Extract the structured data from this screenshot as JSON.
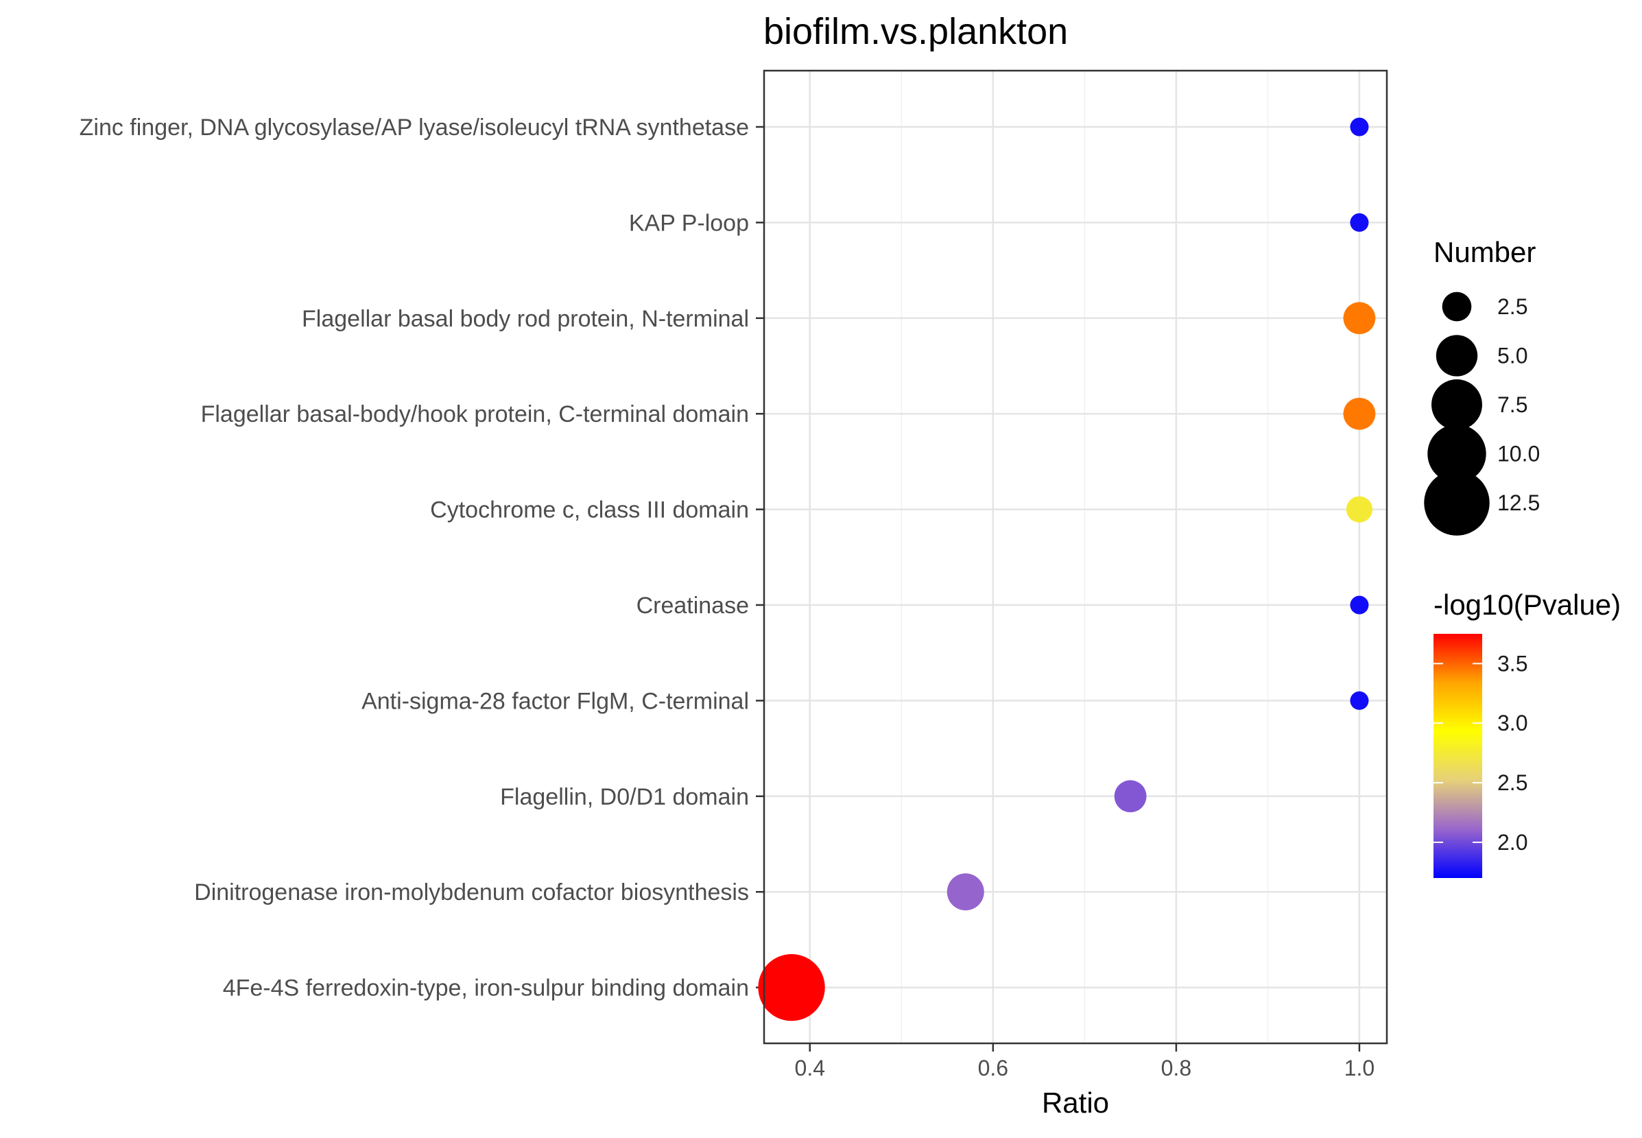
{
  "chart_data": {
    "type": "scatter",
    "title": "biofilm.vs.plankton",
    "xlabel": "Ratio",
    "ylabel": "",
    "xlim": [
      0.35,
      1.03
    ],
    "xticks": [
      0.4,
      0.6,
      0.8,
      1.0
    ],
    "xtick_labels": [
      "0.4",
      "0.6",
      "0.8",
      "1.0"
    ],
    "grid": true,
    "categories": [
      "Zinc finger, DNA glycosylase/AP lyase/isoleucyl tRNA synthetase",
      "KAP P-loop",
      "Flagellar basal body rod protein, N-terminal",
      "Flagellar basal-body/hook protein, C-terminal domain",
      "Cytochrome c, class III domain",
      "Creatinase",
      "Anti-sigma-28 factor FlgM, C-terminal",
      "Flagellin, D0/D1 domain",
      "Dinitrogenase iron-molybdenum cofactor biosynthesis",
      "4Fe-4S ferredoxin-type, iron-sulpur binding domain"
    ],
    "points": [
      {
        "ratio": 1.0,
        "number": 1,
        "neg_log10_p": 1.75
      },
      {
        "ratio": 1.0,
        "number": 1,
        "neg_log10_p": 1.75
      },
      {
        "ratio": 1.0,
        "number": 3,
        "neg_log10_p": 3.45
      },
      {
        "ratio": 1.0,
        "number": 3,
        "neg_log10_p": 3.45
      },
      {
        "ratio": 1.0,
        "number": 2,
        "neg_log10_p": 2.75
      },
      {
        "ratio": 1.0,
        "number": 1,
        "neg_log10_p": 1.75
      },
      {
        "ratio": 1.0,
        "number": 1,
        "neg_log10_p": 1.75
      },
      {
        "ratio": 0.75,
        "number": 3,
        "neg_log10_p": 2.05
      },
      {
        "ratio": 0.57,
        "number": 4,
        "neg_log10_p": 2.1
      },
      {
        "ratio": 0.38,
        "number": 13,
        "neg_log10_p": 3.75
      }
    ],
    "size_legend": {
      "title": "Number",
      "values": [
        2.5,
        5.0,
        7.5,
        10.0,
        12.5
      ],
      "labels": [
        "2.5",
        "5.0",
        "7.5",
        "10.0",
        "12.5"
      ]
    },
    "color_legend": {
      "title": "-log10(Pvalue)",
      "range": [
        1.7,
        3.75
      ],
      "ticks": [
        3.5,
        3.0,
        2.5,
        2.0
      ],
      "labels": [
        "3.5",
        "3.0",
        "2.5",
        "2.0"
      ],
      "gradient_low_to_high": [
        "#0000ff",
        "#9966cc",
        "#e6d07a",
        "#ffff00",
        "#ffa500",
        "#ff0000"
      ]
    },
    "legend_position": "right"
  }
}
